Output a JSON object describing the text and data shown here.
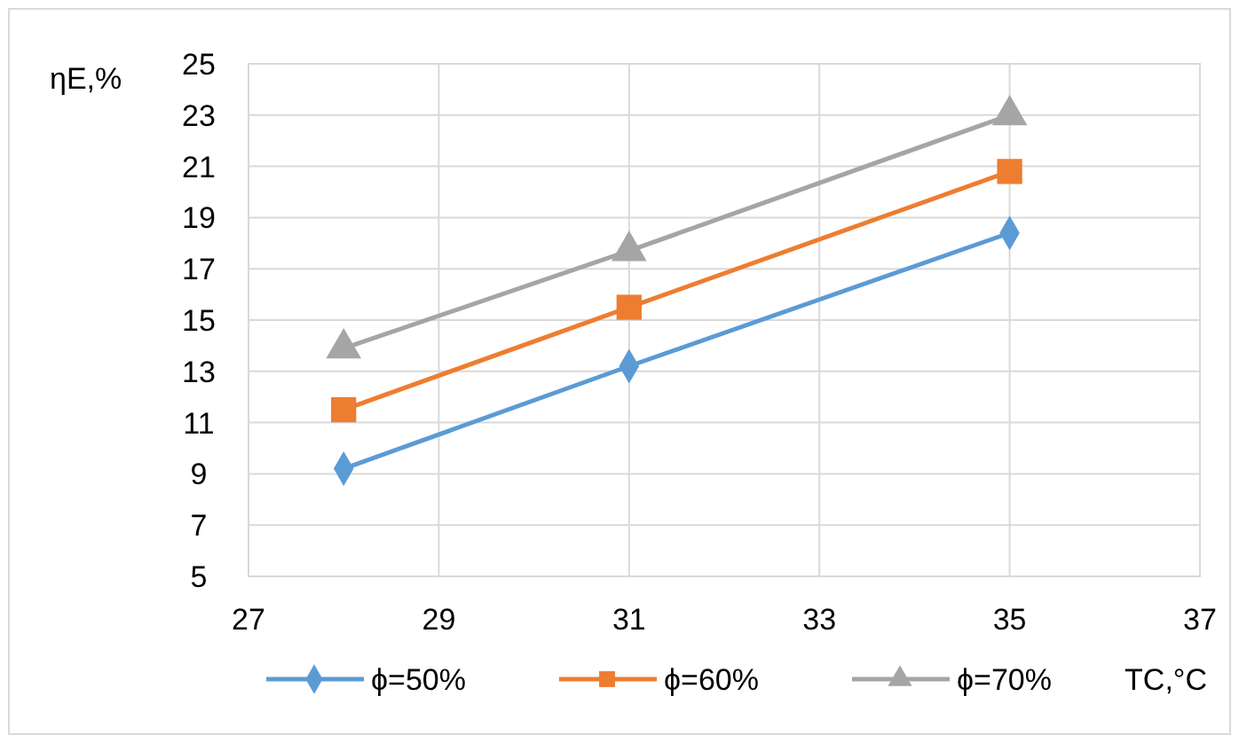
{
  "chart_data": {
    "type": "line",
    "xlabel": "TC,°C",
    "ylabel": "ηE,%",
    "x": [
      28,
      31,
      35
    ],
    "series": [
      {
        "name": "ϕ=50%",
        "color": "#5b9bd5",
        "marker": "diamond",
        "values": [
          9.2,
          13.2,
          18.4
        ]
      },
      {
        "name": "ϕ=60%",
        "color": "#ed7d31",
        "marker": "square",
        "values": [
          11.5,
          15.5,
          20.8
        ]
      },
      {
        "name": "ϕ=70%",
        "color": "#a5a5a5",
        "marker": "triangle",
        "values": [
          13.9,
          17.7,
          23.0
        ]
      }
    ],
    "xlim": [
      27,
      37
    ],
    "xticks": [
      27,
      29,
      31,
      33,
      35,
      37
    ],
    "ylim": [
      5,
      25
    ],
    "yticks": [
      5,
      7,
      9,
      11,
      13,
      15,
      17,
      19,
      21,
      23,
      25
    ],
    "grid": true,
    "legend": "bottom",
    "line_style": "solid"
  }
}
